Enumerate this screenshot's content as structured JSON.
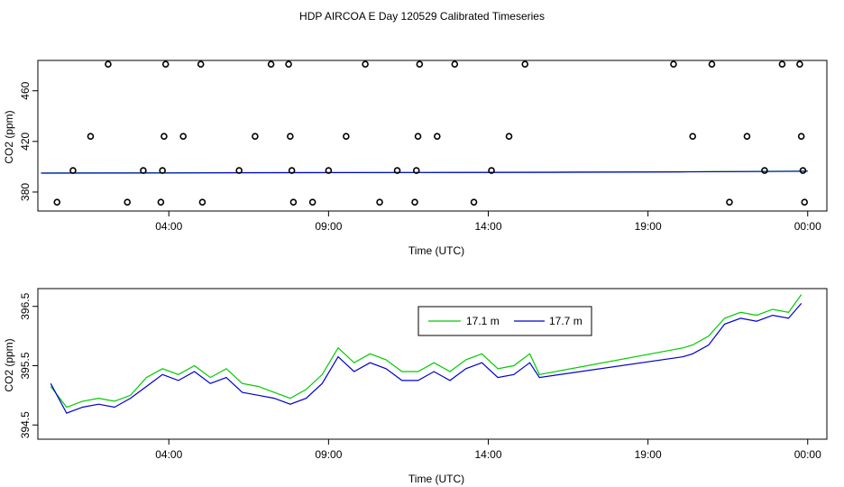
{
  "title": "HDP AIRCOA E  Day 120529  Calibrated Timeseries",
  "colors": {
    "green": "#00cc00",
    "blue": "#0000cc",
    "axis": "#000000"
  },
  "chart_data": [
    {
      "type": "scatter",
      "xlabel": "Time (UTC)",
      "ylabel": "CO2 (ppm)",
      "x_tick_values": [
        4,
        9,
        14,
        19,
        24
      ],
      "x_tick_labels": [
        "04:00",
        "09:00",
        "14:00",
        "19:00",
        "00:00"
      ],
      "y_tick_values": [
        380,
        420,
        460
      ],
      "y_tick_labels": [
        "380",
        "420",
        "460"
      ],
      "xlim": [
        -0.1,
        24.6
      ],
      "ylim": [
        365,
        484
      ],
      "points": [
        [
          0.5,
          372
        ],
        [
          1.0,
          397
        ],
        [
          1.55,
          424
        ],
        [
          2.1,
          481
        ],
        [
          2.7,
          372
        ],
        [
          3.2,
          397
        ],
        [
          3.75,
          372
        ],
        [
          3.8,
          397
        ],
        [
          3.85,
          424
        ],
        [
          3.9,
          481
        ],
        [
          4.45,
          424
        ],
        [
          5.05,
          372
        ],
        [
          5.0,
          481
        ],
        [
          6.2,
          397
        ],
        [
          6.7,
          424
        ],
        [
          7.2,
          481
        ],
        [
          7.75,
          481
        ],
        [
          7.8,
          424
        ],
        [
          7.85,
          397
        ],
        [
          7.9,
          372
        ],
        [
          8.5,
          372
        ],
        [
          9.0,
          397
        ],
        [
          9.55,
          424
        ],
        [
          10.15,
          481
        ],
        [
          10.6,
          372
        ],
        [
          11.15,
          397
        ],
        [
          11.7,
          372
        ],
        [
          11.75,
          397
        ],
        [
          11.8,
          424
        ],
        [
          11.85,
          481
        ],
        [
          12.4,
          424
        ],
        [
          12.95,
          481
        ],
        [
          13.55,
          372
        ],
        [
          14.1,
          397
        ],
        [
          14.65,
          424
        ],
        [
          15.15,
          481
        ],
        [
          19.8,
          481
        ],
        [
          20.4,
          424
        ],
        [
          21.0,
          481
        ],
        [
          21.55,
          372
        ],
        [
          22.1,
          424
        ],
        [
          22.65,
          397
        ],
        [
          23.2,
          481
        ],
        [
          23.75,
          481
        ],
        [
          23.8,
          424
        ],
        [
          23.85,
          397
        ],
        [
          23.9,
          372
        ]
      ],
      "series_baseline": [
        {
          "name": "17.1 m",
          "x": [
            0,
            4,
            8,
            12,
            16,
            20,
            24
          ],
          "y": [
            395.0,
            395.2,
            395.4,
            395.5,
            395.8,
            396.0,
            396.6
          ]
        },
        {
          "name": "17.7 m",
          "x": [
            0,
            4,
            8,
            12,
            16,
            20,
            24
          ],
          "y": [
            394.9,
            395.1,
            395.3,
            395.4,
            395.6,
            395.9,
            396.4
          ]
        }
      ]
    },
    {
      "type": "line",
      "xlabel": "Time (UTC)",
      "ylabel": "CO2 (ppm)",
      "x_tick_values": [
        4,
        9,
        14,
        19,
        24
      ],
      "x_tick_labels": [
        "04:00",
        "09:00",
        "14:00",
        "19:00",
        "00:00"
      ],
      "y_tick_values": [
        394.5,
        395.5,
        396.5
      ],
      "y_tick_labels": [
        "394.5",
        "395.5",
        "396.5"
      ],
      "xlim": [
        -0.1,
        24.6
      ],
      "ylim": [
        394.26,
        396.8
      ],
      "legend": "top-center",
      "x": [
        0.3,
        0.8,
        1.3,
        1.8,
        2.3,
        2.8,
        3.3,
        3.8,
        4.3,
        4.8,
        5.3,
        5.8,
        6.3,
        6.8,
        7.3,
        7.8,
        8.3,
        8.8,
        9.3,
        9.8,
        10.3,
        10.8,
        11.3,
        11.8,
        12.3,
        12.8,
        13.3,
        13.8,
        14.3,
        14.8,
        15.3,
        15.6,
        20.1,
        20.4,
        20.9,
        21.4,
        21.9,
        22.4,
        22.9,
        23.4,
        23.8
      ],
      "series": [
        {
          "name": "17.1 m",
          "color": "#00cc00",
          "values": [
            395.15,
            394.8,
            394.9,
            394.95,
            394.9,
            395.0,
            395.3,
            395.45,
            395.35,
            395.5,
            395.3,
            395.45,
            395.2,
            395.15,
            395.05,
            394.95,
            395.1,
            395.35,
            395.8,
            395.55,
            395.7,
            395.6,
            395.4,
            395.4,
            395.55,
            395.4,
            395.6,
            395.7,
            395.45,
            395.5,
            395.7,
            395.35,
            395.8,
            395.85,
            396.0,
            396.3,
            396.4,
            396.35,
            396.45,
            396.4,
            396.7
          ]
        },
        {
          "name": "17.7 m",
          "color": "#0000cc",
          "values": [
            395.2,
            394.7,
            394.8,
            394.85,
            394.8,
            394.95,
            395.15,
            395.35,
            395.25,
            395.4,
            395.2,
            395.3,
            395.05,
            395.0,
            394.95,
            394.85,
            394.95,
            395.2,
            395.65,
            395.4,
            395.55,
            395.45,
            395.25,
            395.25,
            395.4,
            395.25,
            395.45,
            395.55,
            395.3,
            395.35,
            395.55,
            395.3,
            395.65,
            395.7,
            395.85,
            396.2,
            396.3,
            396.25,
            396.35,
            396.3,
            396.55
          ]
        }
      ]
    }
  ]
}
